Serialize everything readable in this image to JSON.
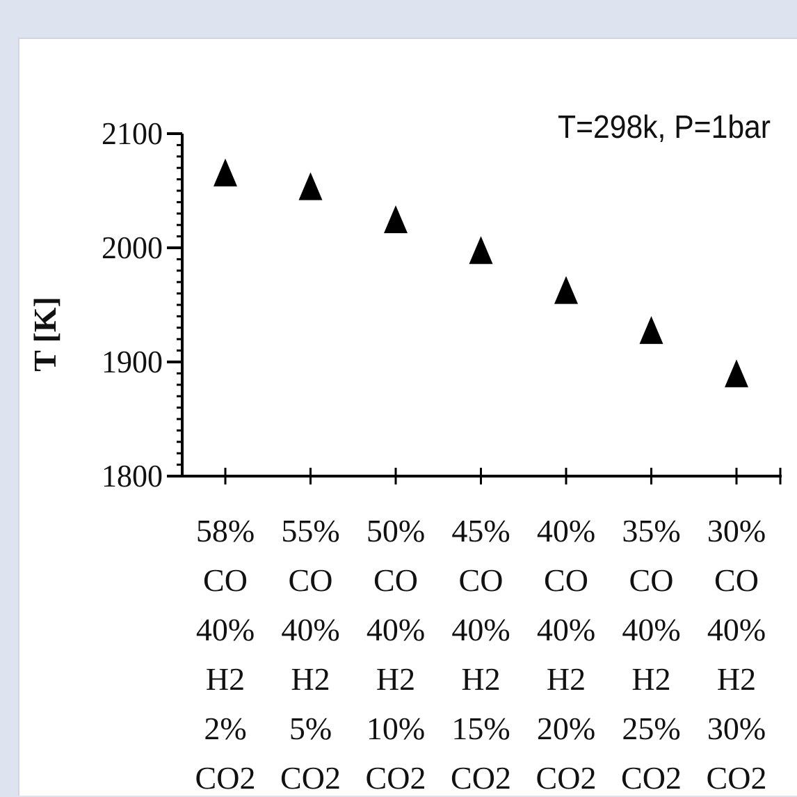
{
  "chart_data": {
    "type": "scatter",
    "annotation": "T=298k, P=1bar",
    "ylabel": "T [K]",
    "xlabel": "",
    "ylim": [
      1800,
      2100
    ],
    "yticks": [
      1800,
      1900,
      2000,
      2100
    ],
    "yminor_step": 10,
    "marker": "triangle",
    "marker_color": "#000000",
    "categories": [
      [
        "58%",
        "CO",
        "40%",
        "H2",
        "2%",
        "CO2"
      ],
      [
        "55%",
        "CO",
        "40%",
        "H2",
        "5%",
        "CO2"
      ],
      [
        "50%",
        "CO",
        "40%",
        "H2",
        "10%",
        "CO2"
      ],
      [
        "45%",
        "CO",
        "40%",
        "H2",
        "15%",
        "CO2"
      ],
      [
        "40%",
        "CO",
        "40%",
        "H2",
        "20%",
        "CO2"
      ],
      [
        "35%",
        "CO",
        "40%",
        "H2",
        "25%",
        "CO2"
      ],
      [
        "30%",
        "CO",
        "40%",
        "H2",
        "30%",
        "CO2"
      ]
    ],
    "series": [
      {
        "values": [
          2066,
          2054,
          2025,
          1998,
          1963,
          1928,
          1890
        ]
      }
    ]
  }
}
